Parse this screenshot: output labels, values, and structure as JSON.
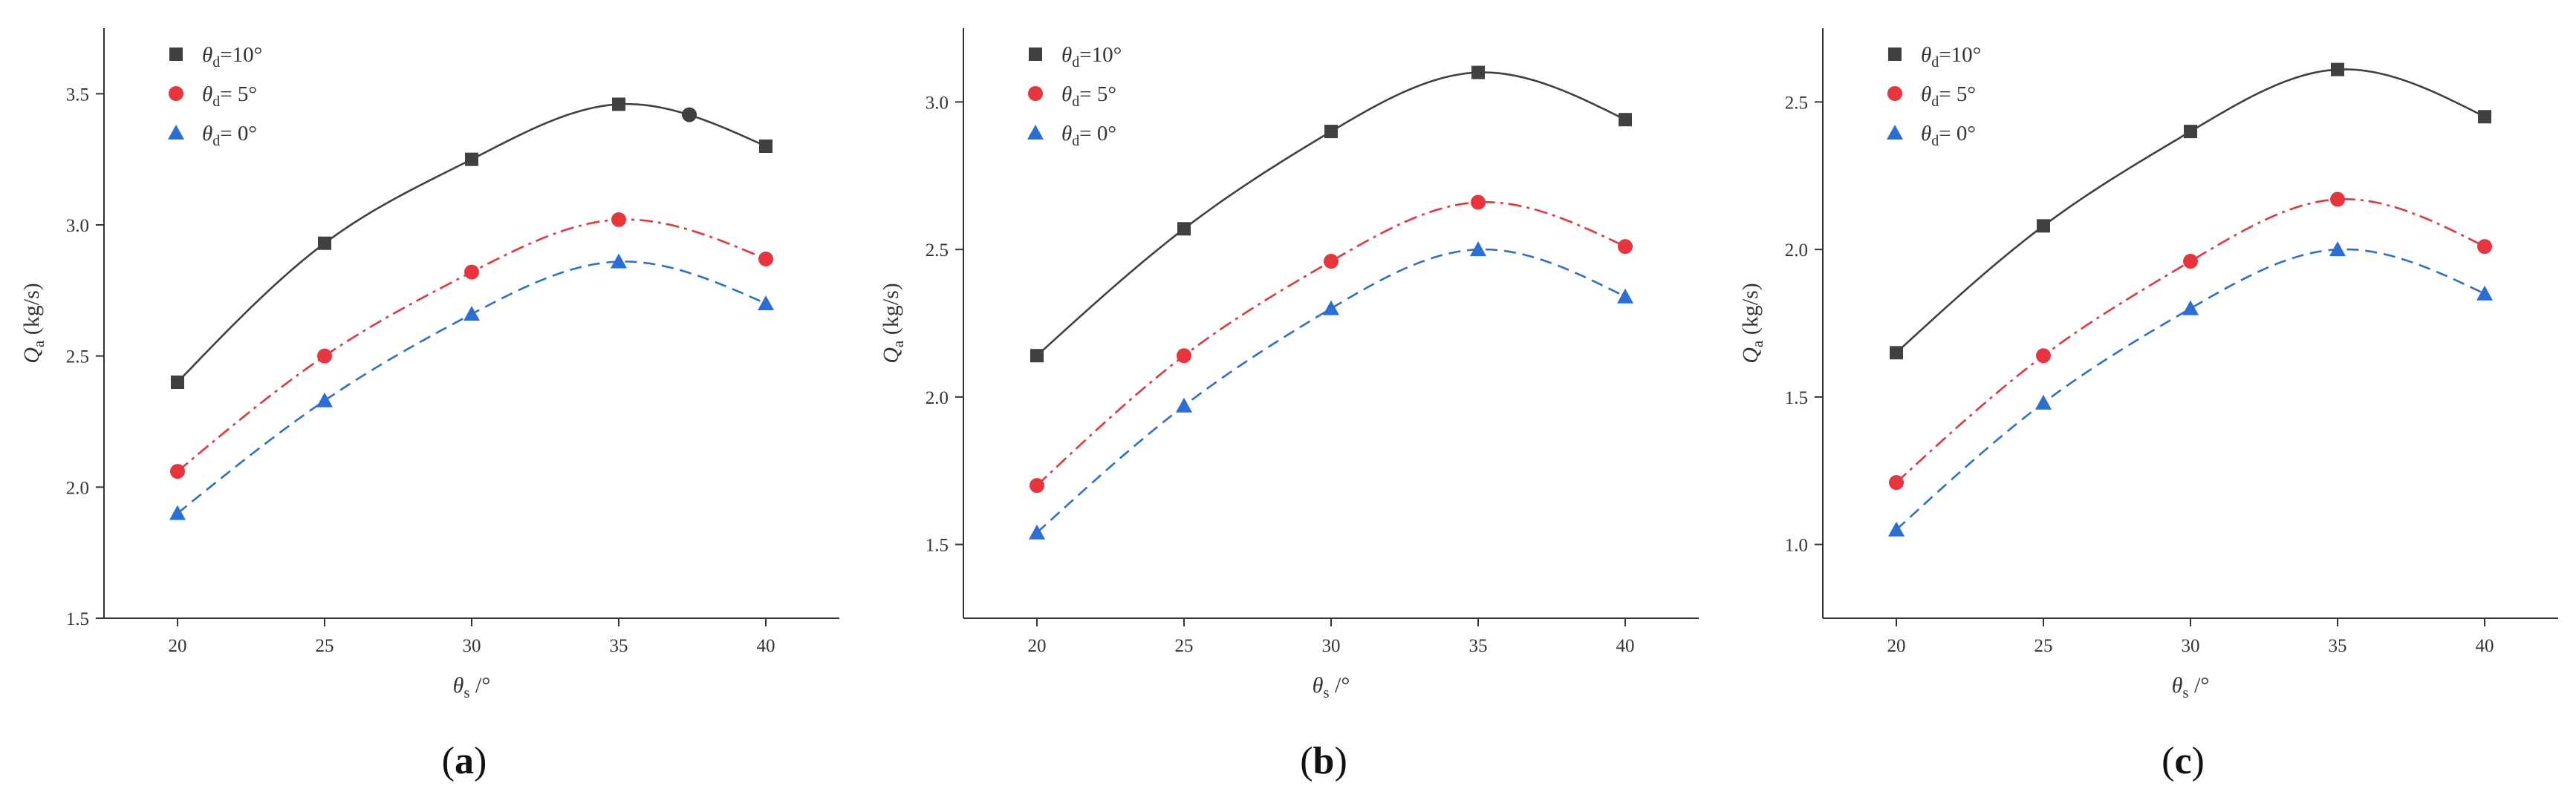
{
  "figure": {
    "background": "#ffffff",
    "axis_color": "#333333"
  },
  "chart_data": [
    {
      "type": "line",
      "panel_label": "a",
      "xlabel": {
        "symbol": "θ",
        "subscript": "s",
        "suffix": " /°"
      },
      "ylabel": {
        "symbol": "Q",
        "subscript": "a",
        "unit": "(kg/s)"
      },
      "x": [
        20,
        25,
        30,
        35,
        40
      ],
      "xticks": [
        "20",
        "25",
        "30",
        "35",
        "40"
      ],
      "xlim": [
        17.5,
        42.5
      ],
      "yticks": [
        "1.5",
        "2.0",
        "2.5",
        "3.0",
        "3.5"
      ],
      "ytick_values": [
        1.5,
        2.0,
        2.5,
        3.0,
        3.5
      ],
      "ylim": [
        1.5,
        3.75
      ],
      "series": [
        {
          "name": "θd=10°",
          "legend": {
            "symbol": "θ",
            "subscript": "d",
            "value": "=10°"
          },
          "marker": "square",
          "color": "#404040",
          "dash": "solid",
          "values": [
            2.4,
            2.93,
            3.25,
            3.46,
            3.3
          ],
          "extra_markers": [
            {
              "x": 37.4,
              "y": 3.42
            }
          ]
        },
        {
          "name": "θd=5°",
          "legend": {
            "symbol": "θ",
            "subscript": "d",
            "value": "=  5°"
          },
          "marker": "circle",
          "color": "#e8343c",
          "dash": "dashdot",
          "values": [
            2.06,
            2.5,
            2.82,
            3.02,
            2.87
          ]
        },
        {
          "name": "θd=0°",
          "legend": {
            "symbol": "θ",
            "subscript": "d",
            "value": "=  0°"
          },
          "marker": "triangle",
          "color": "#2a6fd6",
          "dash": "dashed",
          "values": [
            1.9,
            2.33,
            2.66,
            2.86,
            2.7
          ]
        }
      ]
    },
    {
      "type": "line",
      "panel_label": "b",
      "xlabel": {
        "symbol": "θ",
        "subscript": "s",
        "suffix": " /°"
      },
      "ylabel": {
        "symbol": "Q",
        "subscript": "a",
        "unit": "(kg/s)"
      },
      "x": [
        20,
        25,
        30,
        35,
        40
      ],
      "xticks": [
        "20",
        "25",
        "30",
        "35",
        "40"
      ],
      "xlim": [
        17.5,
        42.5
      ],
      "yticks": [
        "1.5",
        "2.0",
        "2.5",
        "3.0"
      ],
      "ytick_values": [
        1.5,
        2.0,
        2.5,
        3.0
      ],
      "ylim": [
        1.25,
        3.25
      ],
      "series": [
        {
          "name": "θd=10°",
          "legend": {
            "symbol": "θ",
            "subscript": "d",
            "value": "=10°"
          },
          "marker": "square",
          "color": "#404040",
          "dash": "solid",
          "values": [
            2.14,
            2.57,
            2.9,
            3.1,
            2.94
          ]
        },
        {
          "name": "θd=5°",
          "legend": {
            "symbol": "θ",
            "subscript": "d",
            "value": "=  5°"
          },
          "marker": "circle",
          "color": "#e8343c",
          "dash": "dashdot",
          "values": [
            1.7,
            2.14,
            2.46,
            2.66,
            2.51
          ]
        },
        {
          "name": "θd=0°",
          "legend": {
            "symbol": "θ",
            "subscript": "d",
            "value": "=  0°"
          },
          "marker": "triangle",
          "color": "#2a6fd6",
          "dash": "dashed",
          "values": [
            1.54,
            1.97,
            2.3,
            2.5,
            2.34
          ]
        }
      ]
    },
    {
      "type": "line",
      "panel_label": "c",
      "xlabel": {
        "symbol": "θ",
        "subscript": "s",
        "suffix": " /°"
      },
      "ylabel": {
        "symbol": "Q",
        "subscript": "a",
        "unit": "(kg/s)"
      },
      "x": [
        20,
        25,
        30,
        35,
        40
      ],
      "xticks": [
        "20",
        "25",
        "30",
        "35",
        "40"
      ],
      "xlim": [
        17.5,
        42.5
      ],
      "yticks": [
        "1.0",
        "1.5",
        "2.0",
        "2.5"
      ],
      "ytick_values": [
        1.0,
        1.5,
        2.0,
        2.5
      ],
      "ylim": [
        0.75,
        2.75
      ],
      "series": [
        {
          "name": "θd=10°",
          "legend": {
            "symbol": "θ",
            "subscript": "d",
            "value": "=10°"
          },
          "marker": "square",
          "color": "#404040",
          "dash": "solid",
          "values": [
            1.65,
            2.08,
            2.4,
            2.61,
            2.45
          ]
        },
        {
          "name": "θd=5°",
          "legend": {
            "symbol": "θ",
            "subscript": "d",
            "value": "=  5°"
          },
          "marker": "circle",
          "color": "#e8343c",
          "dash": "dashdot",
          "values": [
            1.21,
            1.64,
            1.96,
            2.17,
            2.01
          ]
        },
        {
          "name": "θd=0°",
          "legend": {
            "symbol": "θ",
            "subscript": "d",
            "value": "=  0°"
          },
          "marker": "triangle",
          "color": "#2a6fd6",
          "dash": "dashed",
          "values": [
            1.05,
            1.48,
            1.8,
            2.0,
            1.85
          ]
        }
      ]
    }
  ]
}
